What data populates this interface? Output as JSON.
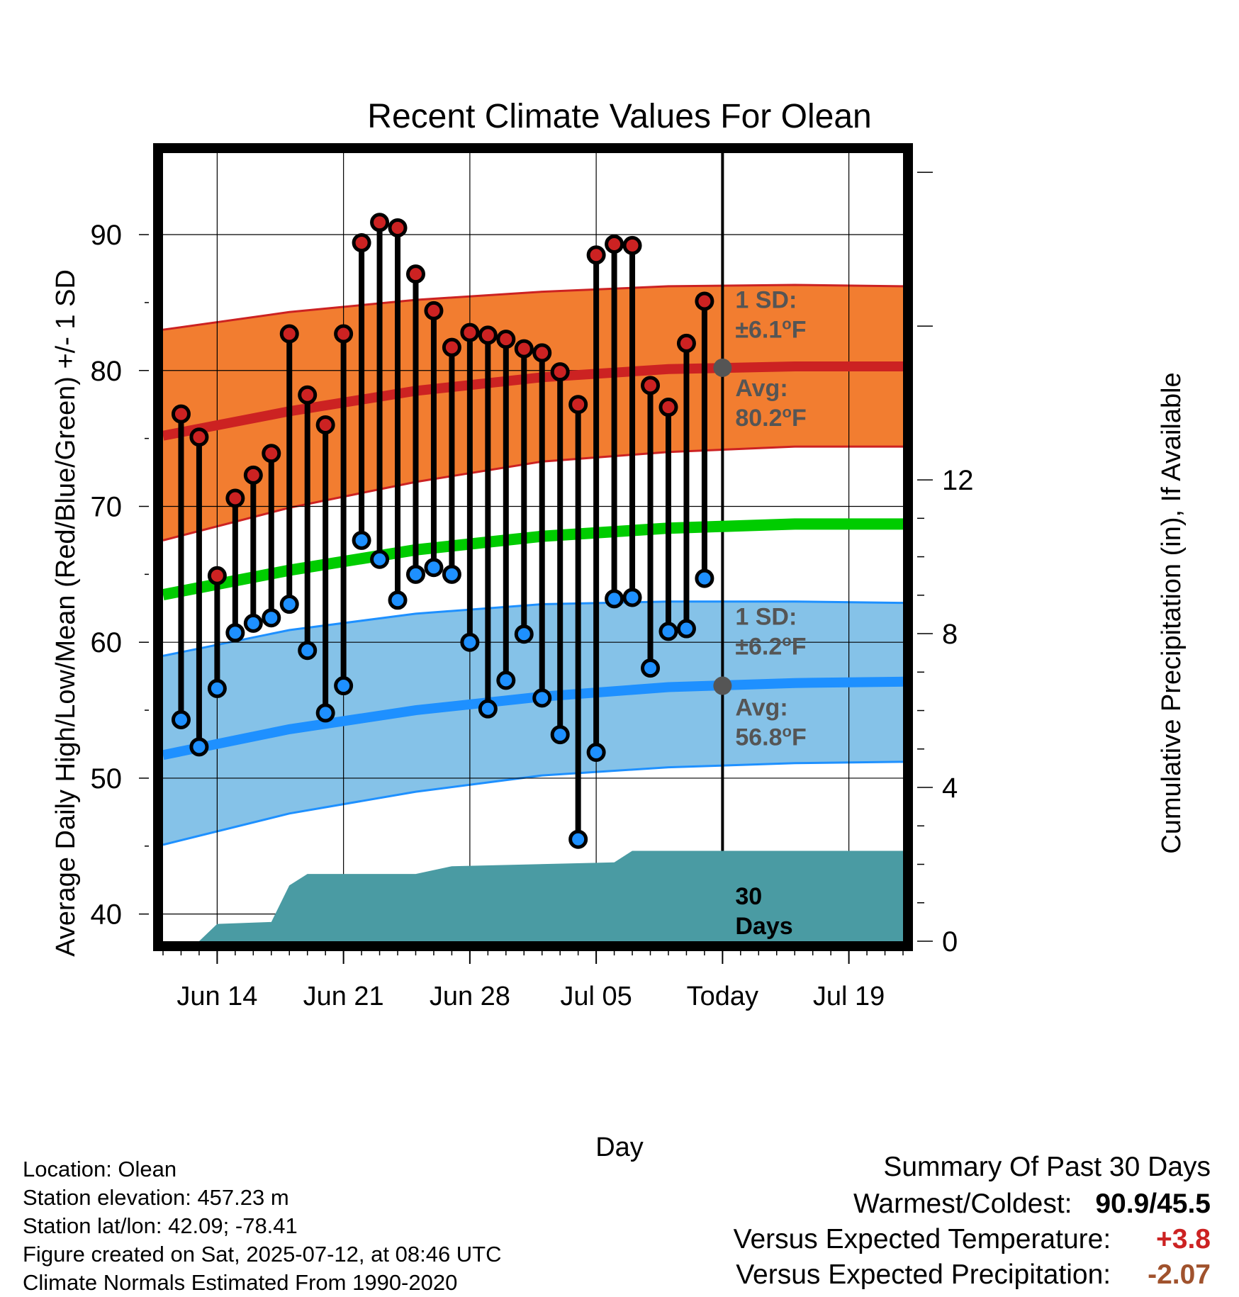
{
  "chart_data": {
    "type": "line",
    "title": "Recent Climate Values For Olean",
    "xlabel": "Day",
    "ylabel": "Average Daily High/Low/Mean (Red/Blue/Green) +/- 1 SD",
    "y2label": "Cumulative Precipitation (in), If Available",
    "ylim": [
      38,
      96
    ],
    "y_ticks": [
      40,
      50,
      60,
      70,
      80,
      90
    ],
    "y2lim": [
      0,
      20.5
    ],
    "y2_ticks": [
      0,
      4,
      8,
      12
    ],
    "x_range": [
      "2025-06-11",
      "2025-07-22"
    ],
    "x_ticks": [
      {
        "date": "2025-06-14",
        "label": "Jun 14"
      },
      {
        "date": "2025-06-21",
        "label": "Jun 21"
      },
      {
        "date": "2025-06-28",
        "label": "Jun 28"
      },
      {
        "date": "2025-07-05",
        "label": "Jul 05"
      },
      {
        "date": "2025-07-12",
        "label": "Today"
      },
      {
        "date": "2025-07-19",
        "label": "Jul 19"
      }
    ],
    "grid": true,
    "today": "2025-07-12",
    "daily": {
      "dates": [
        "2025-06-12",
        "2025-06-13",
        "2025-06-14",
        "2025-06-15",
        "2025-06-16",
        "2025-06-17",
        "2025-06-18",
        "2025-06-19",
        "2025-06-20",
        "2025-06-21",
        "2025-06-22",
        "2025-06-23",
        "2025-06-24",
        "2025-06-25",
        "2025-06-26",
        "2025-06-27",
        "2025-06-28",
        "2025-06-29",
        "2025-06-30",
        "2025-07-01",
        "2025-07-02",
        "2025-07-03",
        "2025-07-04",
        "2025-07-05",
        "2025-07-06",
        "2025-07-07",
        "2025-07-08",
        "2025-07-09",
        "2025-07-10",
        "2025-07-11"
      ],
      "highs": [
        76.8,
        75.1,
        64.9,
        70.6,
        72.3,
        73.9,
        82.7,
        78.2,
        76.0,
        82.7,
        89.4,
        90.9,
        90.5,
        87.1,
        84.4,
        81.7,
        82.8,
        82.6,
        82.3,
        81.6,
        81.3,
        79.9,
        77.5,
        88.5,
        89.3,
        89.2,
        78.9,
        77.3,
        82.0,
        85.1
      ],
      "lows": [
        54.3,
        52.3,
        56.6,
        60.7,
        61.4,
        61.8,
        62.8,
        59.4,
        54.8,
        56.8,
        67.5,
        66.1,
        63.1,
        65.0,
        65.5,
        65.0,
        60.0,
        55.1,
        57.2,
        60.6,
        55.9,
        53.2,
        45.5,
        51.9,
        63.2,
        63.3,
        58.1,
        60.8,
        61.0,
        64.7
      ]
    },
    "normals": {
      "dates": [
        "2025-06-11",
        "2025-06-18",
        "2025-06-25",
        "2025-07-02",
        "2025-07-09",
        "2025-07-16",
        "2025-07-22"
      ],
      "high_avg": [
        75.2,
        77.0,
        78.5,
        79.5,
        80.1,
        80.3,
        80.3
      ],
      "high_upper": [
        83.0,
        84.3,
        85.2,
        85.8,
        86.2,
        86.3,
        86.2
      ],
      "high_lower": [
        67.5,
        69.9,
        71.8,
        73.3,
        74.0,
        74.4,
        74.4
      ],
      "mean": [
        63.5,
        65.3,
        66.8,
        67.8,
        68.4,
        68.7,
        68.7
      ],
      "low_avg": [
        51.7,
        53.6,
        55.0,
        56.0,
        56.7,
        57.0,
        57.1
      ],
      "low_upper": [
        59.0,
        60.9,
        62.1,
        62.8,
        63.0,
        63.0,
        62.9
      ],
      "low_lower": [
        45.1,
        47.4,
        49.0,
        50.2,
        50.8,
        51.1,
        51.2
      ]
    },
    "precipitation": {
      "dates": [
        "2025-06-13",
        "2025-06-14",
        "2025-06-17",
        "2025-06-18",
        "2025-06-19",
        "2025-06-25",
        "2025-06-27",
        "2025-07-06",
        "2025-07-07",
        "2025-07-12",
        "2025-07-22"
      ],
      "cumulative": [
        0.0,
        0.45,
        0.5,
        1.45,
        1.75,
        1.75,
        1.95,
        2.05,
        2.35,
        2.35,
        2.35
      ]
    },
    "annotations": {
      "high_sd_title": "1 SD:",
      "high_sd_value": "±6.1",
      "high_avg_title": "Avg:",
      "high_avg_value": "80.2",
      "low_sd_title": "1 SD:",
      "low_sd_value": "±6.2",
      "low_avg_title": "Avg:",
      "low_avg_value": "56.8",
      "degree": "o",
      "unit": "F",
      "days_line1": "30",
      "days_line2": "Days"
    },
    "colors": {
      "high_band": "#f27d30",
      "high_line": "#cc2222",
      "low_band": "#85c2e8",
      "low_line": "#1e90ff",
      "mean_line": "#00cc00",
      "precip": "#4a9ba3",
      "high_marker": "#cc2222",
      "low_marker": "#1e90ff",
      "today_marker": "#555555",
      "annotation_text": "#555555"
    }
  },
  "footer": {
    "location": "Location: Olean",
    "elevation": "Station elevation: 457.23 m",
    "latlon": "Station lat/lon: 42.09; -78.41",
    "created": "Figure created on Sat, 2025-07-12, at 08:46 UTC",
    "normals": "Climate Normals Estimated From 1990-2020"
  },
  "summary": {
    "title": "Summary Of Past 30 Days",
    "warm_cold_label": "Warmest/Coldest:",
    "warm_cold_value": "90.9/45.5",
    "temp_label": "Versus Expected Temperature:",
    "temp_value": "+3.8",
    "temp_color": "#cc2222",
    "precip_label": "Versus Expected Precipitation:",
    "precip_value": "-2.07",
    "precip_color": "#a0522d"
  }
}
